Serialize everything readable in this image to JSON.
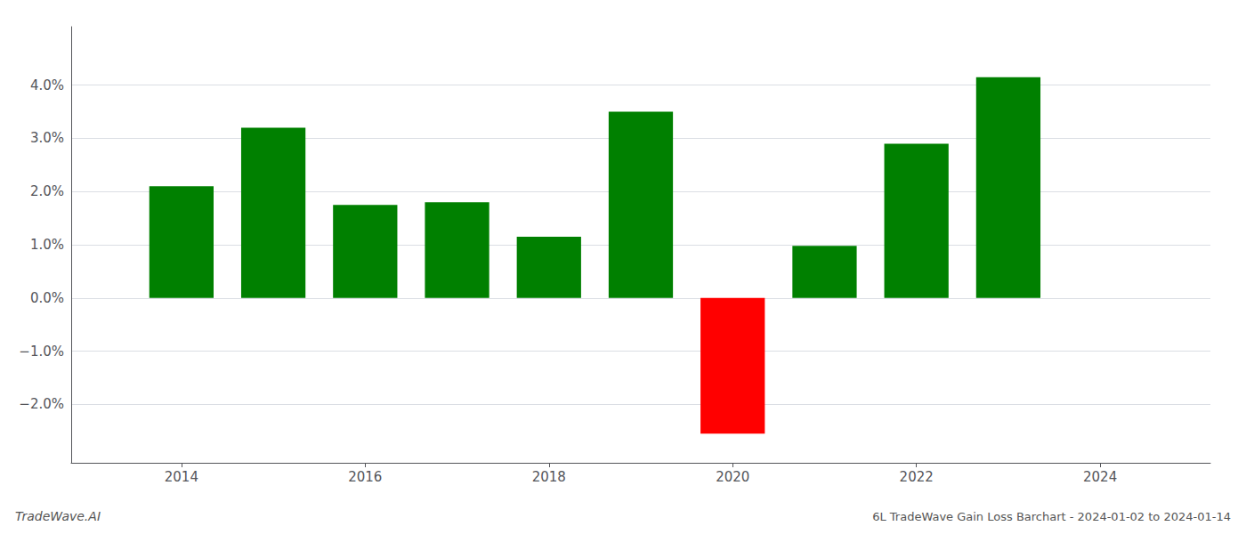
{
  "chart_data": {
    "type": "bar",
    "title": "6L TradeWave Gain Loss Barchart - 2024-01-02 to 2024-01-14",
    "annotations": [
      "TradeWave.AI"
    ],
    "x": [
      2014,
      2015,
      2016,
      2017,
      2018,
      2019,
      2020,
      2021,
      2022,
      2023
    ],
    "values": [
      0.021,
      0.032,
      0.0175,
      0.018,
      0.0115,
      0.035,
      -0.0255,
      0.0098,
      0.029,
      0.0415
    ],
    "colors": [
      "#008000",
      "#008000",
      "#008000",
      "#008000",
      "#008000",
      "#008000",
      "#ff0000",
      "#008000",
      "#008000",
      "#008000"
    ],
    "xlim": [
      2012.8,
      2025.2
    ],
    "ylim": [
      -0.031,
      0.051
    ],
    "xticks": [
      2014,
      2016,
      2018,
      2020,
      2022,
      2024
    ],
    "yticks": [
      {
        "value": -0.02,
        "label": "−2.0%"
      },
      {
        "value": -0.01,
        "label": "−1.0%"
      },
      {
        "value": 0.0,
        "label": "0.0%"
      },
      {
        "value": 0.01,
        "label": "1.0%"
      },
      {
        "value": 0.02,
        "label": "2.0%"
      },
      {
        "value": 0.03,
        "label": "3.0%"
      },
      {
        "value": 0.04,
        "label": "4.0%"
      }
    ],
    "grid": true
  }
}
